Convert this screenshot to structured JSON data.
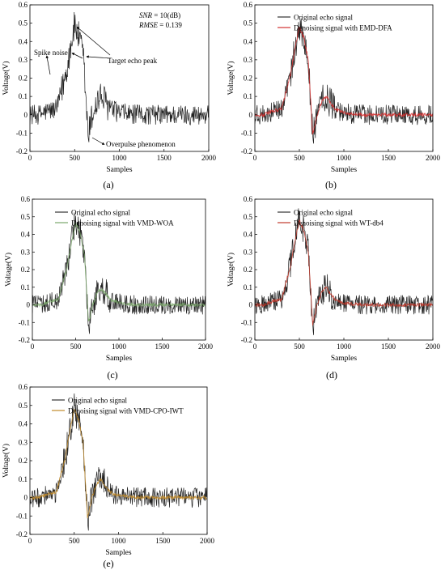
{
  "figure": {
    "panels": [
      {
        "id": "a",
        "label": "(a)",
        "denoise_color": "#c00000",
        "legend": [],
        "annotations": {
          "snr_var": "SNR",
          "snr_text": " = 10(dB)",
          "rmse_var": "RMSE",
          "rmse_text": " = 0.139",
          "spike": "Spike noise",
          "peak": "Target echo peak",
          "over": "Overpulse phenomenon"
        }
      },
      {
        "id": "b",
        "label": "(b)",
        "denoise_color": "#d23030",
        "legend": [
          "Original echo signal",
          "Denoising signal with EMD-DFA"
        ]
      },
      {
        "id": "c",
        "label": "(c)",
        "denoise_color": "#7aa66a",
        "legend": [
          "Original echo signal",
          "Denoising signal with VMD-WOA"
        ]
      },
      {
        "id": "d",
        "label": "(d)",
        "denoise_color": "#c0392b",
        "legend": [
          "Original echo signal",
          "Denoising signal with WT-db4"
        ]
      },
      {
        "id": "e",
        "label": "(e)",
        "denoise_color": "#c08a2a",
        "legend": [
          "Original echo signal",
          "Denoising signal with VMD-CPO-IWT"
        ]
      }
    ]
  },
  "chart_data": [
    {
      "type": "line",
      "xlabel": "Samples",
      "ylabel": "Voltage(V)",
      "xlim": [
        0,
        2000
      ],
      "ylim": [
        -0.2,
        0.6
      ],
      "xticks": [
        0,
        500,
        1000,
        1500,
        2000
      ],
      "yticks": [
        -0.2,
        -0.1,
        0,
        0.1,
        0.2,
        0.3,
        0.4,
        0.5,
        0.6
      ],
      "snr_db": 10,
      "rmse": 0.139,
      "x": [
        0,
        100,
        200,
        300,
        400,
        450,
        500,
        550,
        600,
        650,
        700,
        750,
        800,
        900,
        1000,
        1200,
        1500,
        2000
      ],
      "series": [
        {
          "values": [
            0,
            0,
            0.02,
            0.03,
            0.22,
            0.36,
            0.49,
            0.42,
            0.3,
            -0.12,
            0,
            0.07,
            0.1,
            0.03,
            0.01,
            0,
            0,
            0
          ]
        }
      ]
    },
    {
      "type": "line",
      "xlabel": "Samples",
      "ylabel": "Voltage(V)",
      "xlim": [
        0,
        2000
      ],
      "ylim": [
        -0.2,
        0.6
      ],
      "xticks": [
        0,
        500,
        1000,
        1500,
        2000
      ],
      "yticks": [
        -0.2,
        -0.1,
        0,
        0.1,
        0.2,
        0.3,
        0.4,
        0.5,
        0.6
      ],
      "x": [
        0,
        100,
        200,
        300,
        400,
        450,
        500,
        550,
        600,
        650,
        700,
        750,
        800,
        900,
        1000,
        1200,
        1500,
        2000
      ],
      "series": [
        {
          "name": "Original echo signal",
          "values": [
            0,
            0,
            0.02,
            0.03,
            0.22,
            0.36,
            0.49,
            0.42,
            0.3,
            -0.12,
            0,
            0.07,
            0.1,
            0.03,
            0.01,
            0,
            0,
            0
          ]
        },
        {
          "name": "Denoising signal with EMD-DFA",
          "values": [
            0,
            0,
            0.02,
            0.03,
            0.22,
            0.36,
            0.48,
            0.42,
            0.3,
            -0.11,
            0,
            0.07,
            0.1,
            0.03,
            0.01,
            0,
            0,
            0
          ]
        }
      ]
    },
    {
      "type": "line",
      "xlabel": "Samples",
      "ylabel": "Voltage(V)",
      "xlim": [
        0,
        2000
      ],
      "ylim": [
        -0.2,
        0.6
      ],
      "xticks": [
        0,
        500,
        1000,
        1500,
        2000
      ],
      "yticks": [
        -0.2,
        -0.1,
        0,
        0.1,
        0.2,
        0.3,
        0.4,
        0.5,
        0.6
      ],
      "x": [
        0,
        100,
        200,
        300,
        400,
        450,
        500,
        550,
        600,
        650,
        700,
        750,
        800,
        900,
        1000,
        1200,
        1500,
        2000
      ],
      "series": [
        {
          "name": "Original echo signal",
          "values": [
            0,
            0,
            0.02,
            0.03,
            0.22,
            0.36,
            0.49,
            0.42,
            0.3,
            -0.12,
            0,
            0.07,
            0.1,
            0.03,
            0.01,
            0,
            0,
            0
          ]
        },
        {
          "name": "Denoising signal with VMD-WOA",
          "values": [
            0,
            0,
            0.02,
            0.03,
            0.21,
            0.35,
            0.47,
            0.41,
            0.29,
            -0.1,
            0,
            0.07,
            0.09,
            0.03,
            0.01,
            0,
            0,
            0
          ]
        }
      ]
    },
    {
      "type": "line",
      "xlabel": "Samples",
      "ylabel": "Voltage(V)",
      "xlim": [
        0,
        2000
      ],
      "ylim": [
        -0.2,
        0.6
      ],
      "xticks": [
        0,
        500,
        1000,
        1500,
        2000
      ],
      "yticks": [
        -0.2,
        -0.1,
        0,
        0.1,
        0.2,
        0.3,
        0.4,
        0.5,
        0.6
      ],
      "x": [
        0,
        100,
        200,
        300,
        400,
        450,
        500,
        550,
        600,
        650,
        700,
        750,
        800,
        900,
        1000,
        1200,
        1500,
        2000
      ],
      "series": [
        {
          "name": "Original echo signal",
          "values": [
            0,
            0,
            0.02,
            0.03,
            0.22,
            0.36,
            0.49,
            0.42,
            0.3,
            -0.12,
            0,
            0.07,
            0.1,
            0.03,
            0.01,
            0,
            0,
            0
          ]
        },
        {
          "name": "Denoising signal with WT-db4",
          "values": [
            0,
            0,
            0.02,
            0.03,
            0.22,
            0.36,
            0.48,
            0.42,
            0.3,
            -0.11,
            0,
            0.07,
            0.1,
            0.03,
            0.01,
            0,
            0,
            0
          ]
        }
      ]
    },
    {
      "type": "line",
      "xlabel": "Samples",
      "ylabel": "Voltage(V)",
      "xlim": [
        0,
        2000
      ],
      "ylim": [
        -0.2,
        0.6
      ],
      "xticks": [
        0,
        500,
        1000,
        1500,
        2000
      ],
      "yticks": [
        -0.2,
        -0.1,
        0,
        0.1,
        0.2,
        0.3,
        0.4,
        0.5,
        0.6
      ],
      "x": [
        0,
        100,
        200,
        300,
        400,
        450,
        500,
        550,
        600,
        650,
        700,
        750,
        800,
        900,
        1000,
        1200,
        1500,
        2000
      ],
      "series": [
        {
          "name": "Original echo signal",
          "values": [
            0,
            0,
            0.02,
            0.03,
            0.22,
            0.36,
            0.49,
            0.42,
            0.3,
            -0.12,
            0,
            0.07,
            0.1,
            0.03,
            0.01,
            0,
            0,
            0
          ]
        },
        {
          "name": "Denoising signal with VMD-CPO-IWT",
          "values": [
            0,
            0,
            0.02,
            0.03,
            0.22,
            0.36,
            0.48,
            0.42,
            0.3,
            -0.11,
            0,
            0.07,
            0.1,
            0.03,
            0.01,
            0,
            0,
            0
          ]
        }
      ]
    }
  ]
}
